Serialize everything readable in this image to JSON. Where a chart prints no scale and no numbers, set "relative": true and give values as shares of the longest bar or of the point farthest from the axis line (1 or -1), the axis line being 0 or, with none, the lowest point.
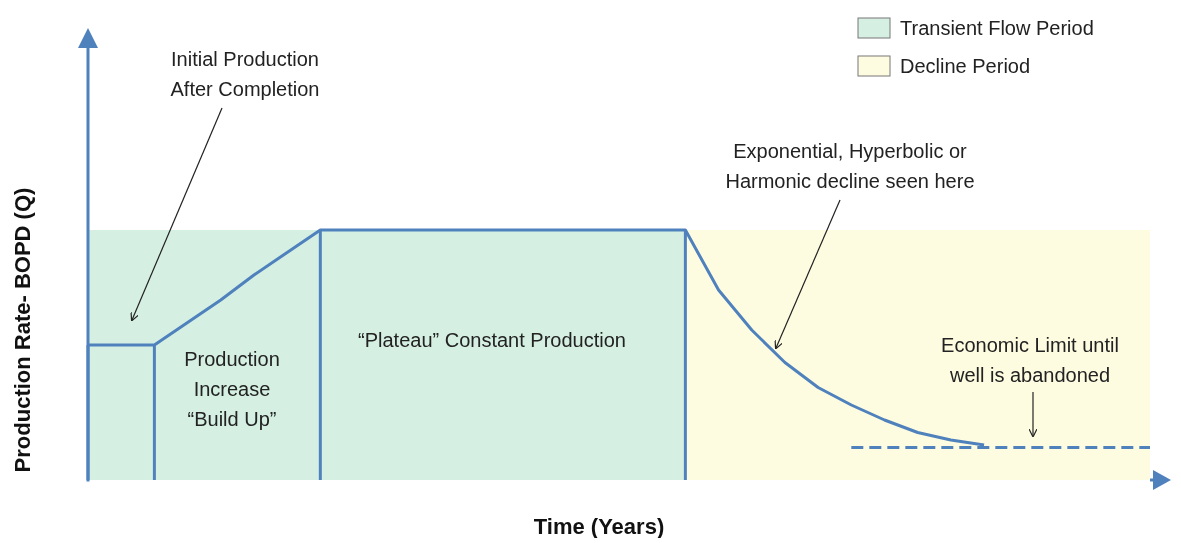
{
  "chart_data": {
    "type": "line",
    "relative": true,
    "xlabel": "Time (Years)",
    "ylabel": "Production Rate- BOPD (Q)",
    "line_style": "solid",
    "marker": "none",
    "categories": [
      null,
      null,
      null,
      null,
      null,
      null,
      null,
      null,
      null,
      null,
      null,
      null,
      null,
      null,
      null,
      null,
      null,
      null,
      null,
      null,
      null,
      null,
      null,
      null,
      null,
      null,
      null,
      null,
      null,
      null,
      null,
      null,
      null
    ],
    "series": [
      {
        "color": "#4f81bd",
        "values": [
          0.54,
          0.54,
          0.54,
          0.63,
          0.72,
          0.82,
          0.91,
          1,
          1,
          1,
          1,
          1,
          1,
          1,
          1,
          1,
          1,
          1,
          1,
          0.76,
          0.6,
          0.47,
          0.37,
          0.3,
          0.24,
          0.19,
          0.16,
          0.14,
          null,
          null,
          null,
          null,
          null
        ]
      },
      {
        "color": "#4f81bd",
        "line_style": "dashed",
        "values": [
          null,
          null,
          null,
          null,
          null,
          null,
          null,
          null,
          null,
          null,
          null,
          null,
          null,
          null,
          null,
          null,
          null,
          null,
          null,
          null,
          null,
          null,
          null,
          0.13,
          0.13,
          0.13,
          0.13,
          0.13,
          0.13,
          0.13,
          0.13,
          0.13,
          0.13
        ]
      }
    ],
    "annotations": [
      "Initial Production After Completion",
      "Production Increase “Build Up”",
      "“Plateau” Constant Production",
      "Exponential, Hyperbolic or Harmonic decline seen here",
      "Economic Limit until well is abandoned",
      "Transient Flow Period",
      "Decline Period"
    ]
  }
}
